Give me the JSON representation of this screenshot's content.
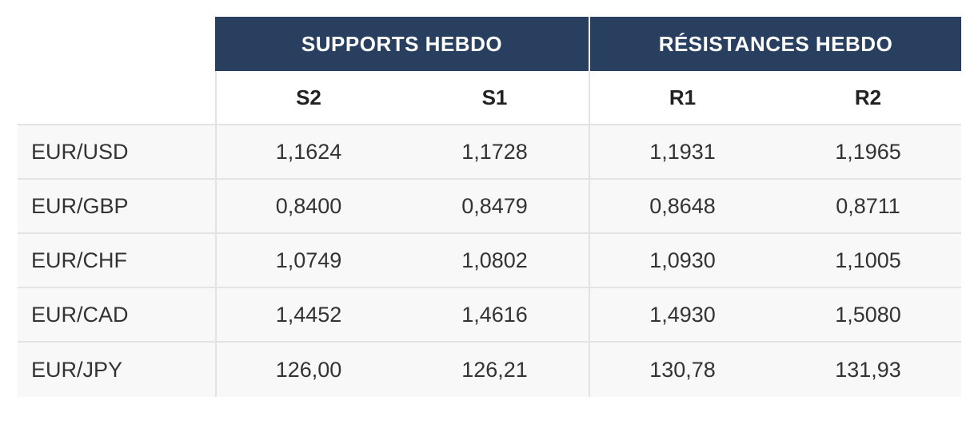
{
  "table": {
    "groups": {
      "supports": "SUPPORTS  HEBDO",
      "resistances": "RÉSISTANCES  HEBDO"
    },
    "columns": {
      "s2": "S2",
      "s1": "S1",
      "r1": "R1",
      "r2": "R2"
    },
    "rows": [
      {
        "pair": "EUR/USD",
        "s2": "1,1624",
        "s1": "1,1728",
        "r1": "1,1931",
        "r2": "1,1965"
      },
      {
        "pair": "EUR/GBP",
        "s2": "0,8400",
        "s1": "0,8479",
        "r1": "0,8648",
        "r2": "0,8711"
      },
      {
        "pair": "EUR/CHF",
        "s2": "1,0749",
        "s1": "1,0802",
        "r1": "1,0930",
        "r2": "1,1005"
      },
      {
        "pair": "EUR/CAD",
        "s2": "1,4452",
        "s1": "1,4616",
        "r1": "1,4930",
        "r2": "1,5080"
      },
      {
        "pair": "EUR/JPY",
        "s2": "126,00",
        "s1": "126,21",
        "r1": "130,78",
        "r2": "131,93"
      }
    ]
  },
  "colors": {
    "header_bg": "#283f5f",
    "row_bg": "#f8f8f8",
    "divider": "#e3e3e3"
  }
}
